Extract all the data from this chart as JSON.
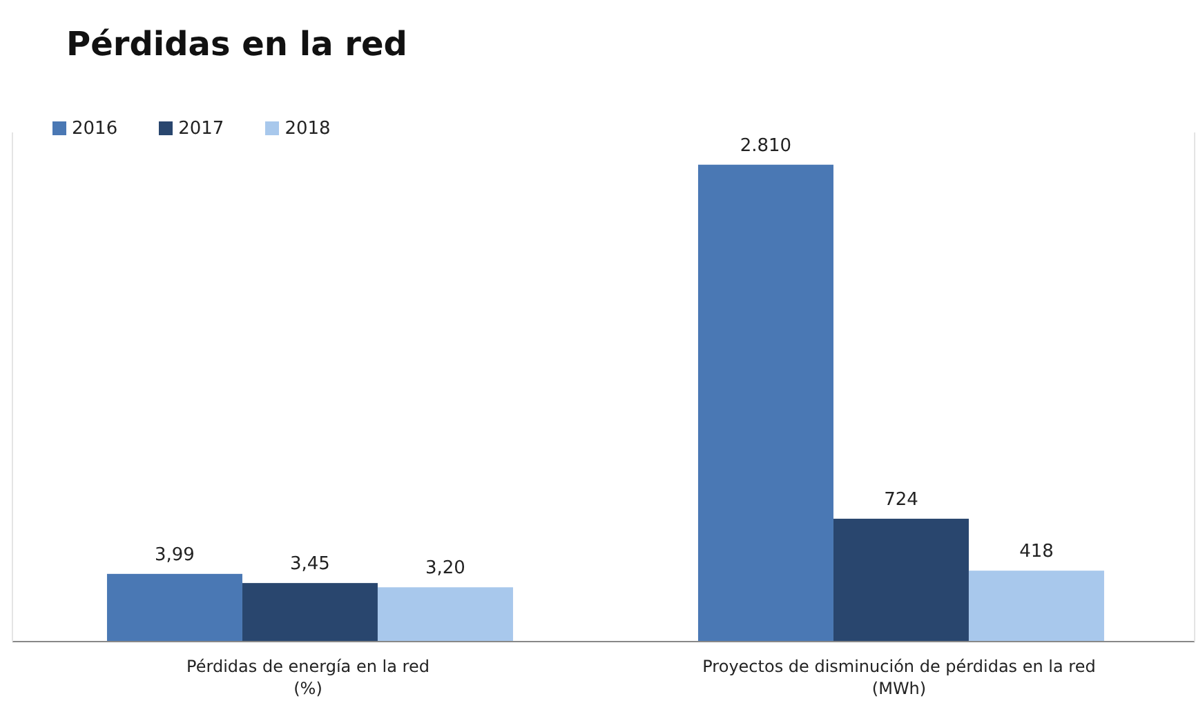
{
  "chart_data": {
    "type": "bar",
    "title": "Pérdidas en la red",
    "categories": [
      "Pérdidas de energía en la red (%)",
      "Proyectos de disminución de pérdidas en la red (MWh)"
    ],
    "legend": "top left",
    "ylim": [
      0,
      30
    ],
    "y2lim": [
      0,
      3000
    ],
    "series": [
      {
        "name": "2016",
        "color": "#4a78b4",
        "values": [
          3.99,
          null
        ],
        "value_labels": [
          "3,99",
          null
        ]
      },
      {
        "name": "2017",
        "color": "#29466e",
        "values": [
          3.45,
          null
        ],
        "value_labels": [
          "3,45",
          null
        ]
      },
      {
        "name": "2018",
        "color": "#a8c8ec",
        "values": [
          3.2,
          null
        ],
        "value_labels": [
          "3,20",
          null
        ]
      },
      {
        "color": "#4a78b4",
        "axis": "y2",
        "values": [
          null,
          2810
        ],
        "value_labels": [
          null,
          "2.810"
        ]
      },
      {
        "color": "#29466e",
        "axis": "y2",
        "values": [
          null,
          724
        ],
        "value_labels": [
          null,
          "724"
        ]
      },
      {
        "color": "#a8c8ec",
        "axis": "y2",
        "values": [
          null,
          418
        ],
        "value_labels": [
          null,
          "418"
        ]
      }
    ]
  }
}
